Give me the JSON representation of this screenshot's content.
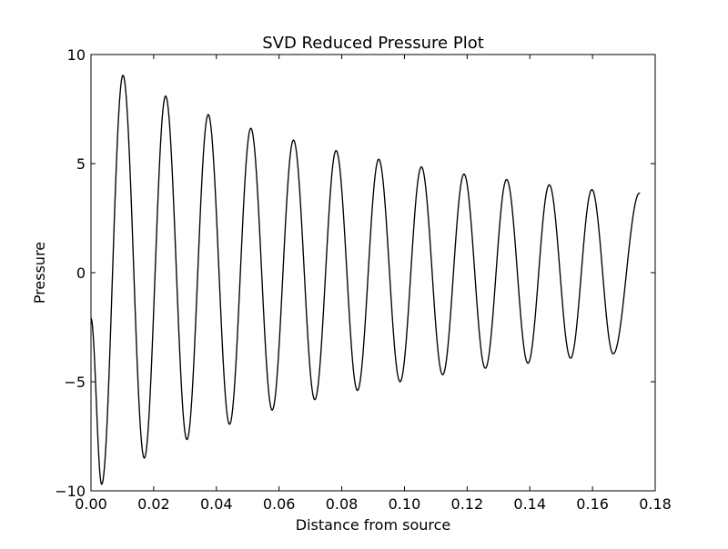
{
  "chart_data": {
    "type": "line",
    "title": "SVD Reduced Pressure Plot",
    "xlabel": "Distance from source",
    "ylabel": "Pressure",
    "xlim": [
      0.0,
      0.18
    ],
    "ylim": [
      -10,
      10
    ],
    "xticks": [
      0.0,
      0.02,
      0.04,
      0.06,
      0.08,
      0.1,
      0.12,
      0.14,
      0.16,
      0.18
    ],
    "xtick_labels": [
      "0.00",
      "0.02",
      "0.04",
      "0.06",
      "0.08",
      "0.10",
      "0.12",
      "0.14",
      "0.16",
      "0.18"
    ],
    "yticks": [
      -10,
      -5,
      0,
      5,
      10
    ],
    "ytick_labels": [
      "−10",
      "−5",
      "0",
      "5",
      "10"
    ],
    "grid": false,
    "line_color": "#000000",
    "series": [
      {
        "x": [
          0.0,
          0.0034,
          0.0102,
          0.017,
          0.0238,
          0.0306,
          0.0374,
          0.0442,
          0.051,
          0.0578,
          0.0646,
          0.0714,
          0.0782,
          0.085,
          0.0918,
          0.0986,
          0.1054,
          0.1122,
          0.119,
          0.1258,
          0.1326,
          0.1394,
          0.1462,
          0.153,
          0.1598,
          0.1666,
          0.175
        ],
        "values": [
          -2.1,
          -9.7,
          9.05,
          -8.5,
          8.1,
          -7.65,
          7.25,
          -6.95,
          6.62,
          -6.3,
          6.08,
          -5.82,
          5.6,
          -5.4,
          5.2,
          -5.0,
          4.85,
          -4.68,
          4.52,
          -4.38,
          4.27,
          -4.15,
          4.03,
          -3.92,
          3.81,
          -3.72,
          3.65
        ]
      }
    ]
  }
}
